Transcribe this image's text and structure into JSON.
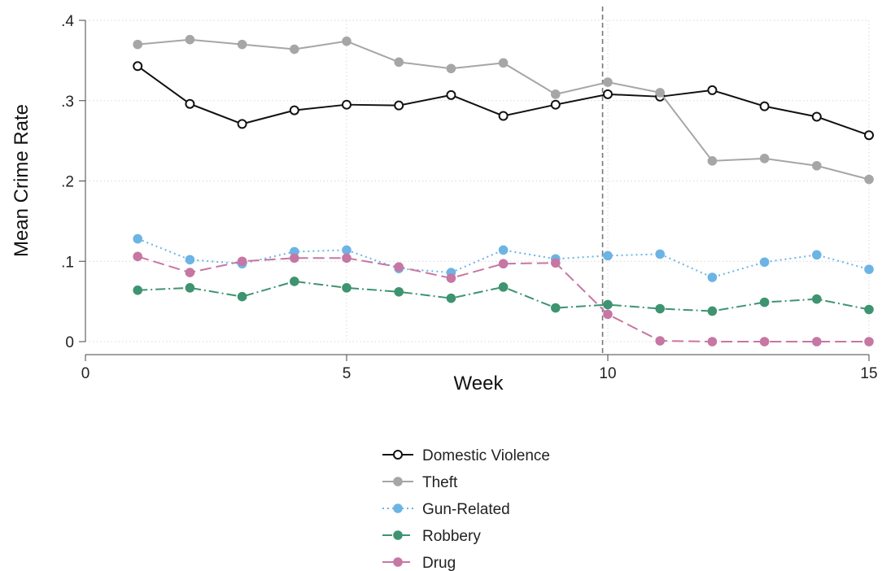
{
  "chart_data": {
    "type": "line",
    "title": "",
    "xlabel": "Week",
    "ylabel": "Mean Crime Rate",
    "xlim": [
      0,
      15
    ],
    "ylim": [
      0,
      0.4
    ],
    "x_ticks": [
      {
        "value": 0,
        "label": "0"
      },
      {
        "value": 5,
        "label": "5"
      },
      {
        "value": 10,
        "label": "10"
      },
      {
        "value": 15,
        "label": "15"
      }
    ],
    "y_ticks": [
      {
        "value": 0,
        "label": "0"
      },
      {
        "value": 0.1,
        "label": ".1"
      },
      {
        "value": 0.2,
        "label": ".2"
      },
      {
        "value": 0.3,
        "label": ".3"
      },
      {
        "value": 0.4,
        "label": ".4"
      }
    ],
    "grid": true,
    "reference_line_x": 9.9,
    "legend_position": "bottom",
    "x": [
      1,
      2,
      3,
      4,
      5,
      6,
      7,
      8,
      9,
      10,
      11,
      12,
      13,
      14,
      15
    ],
    "series": [
      {
        "name": "Domestic Violence",
        "color": "#111111",
        "marker": "hollow-circle",
        "line_style": "solid",
        "values": [
          0.343,
          0.296,
          0.271,
          0.288,
          0.295,
          0.294,
          0.307,
          0.281,
          0.295,
          0.308,
          0.305,
          0.313,
          0.293,
          0.28,
          0.257
        ]
      },
      {
        "name": "Theft",
        "color": "#a6a6a6",
        "marker": "filled-circle",
        "line_style": "solid",
        "values": [
          0.37,
          0.376,
          0.37,
          0.364,
          0.374,
          0.348,
          0.34,
          0.347,
          0.308,
          0.323,
          0.31,
          0.225,
          0.228,
          0.219,
          0.202
        ]
      },
      {
        "name": "Gun-Related",
        "color": "#6cb4e4",
        "marker": "filled-circle",
        "line_style": "dotted",
        "values": [
          0.128,
          0.102,
          0.097,
          0.112,
          0.114,
          0.091,
          0.086,
          0.114,
          0.103,
          0.107,
          0.109,
          0.08,
          0.099,
          0.108,
          0.09
        ]
      },
      {
        "name": "Robbery",
        "color": "#3e9470",
        "marker": "filled-circle",
        "line_style": "dashdot",
        "values": [
          0.064,
          0.067,
          0.056,
          0.075,
          0.067,
          0.062,
          0.054,
          0.068,
          0.042,
          0.046,
          0.041,
          0.038,
          0.049,
          0.053,
          0.04
        ]
      },
      {
        "name": "Drug",
        "color": "#c677a3",
        "marker": "filled-circle",
        "line_style": "longdash",
        "values": [
          0.106,
          0.086,
          0.1,
          0.104,
          0.104,
          0.093,
          0.079,
          0.097,
          0.098,
          0.034,
          0.001,
          0.0,
          0.0,
          0.0,
          0.0
        ]
      }
    ]
  }
}
